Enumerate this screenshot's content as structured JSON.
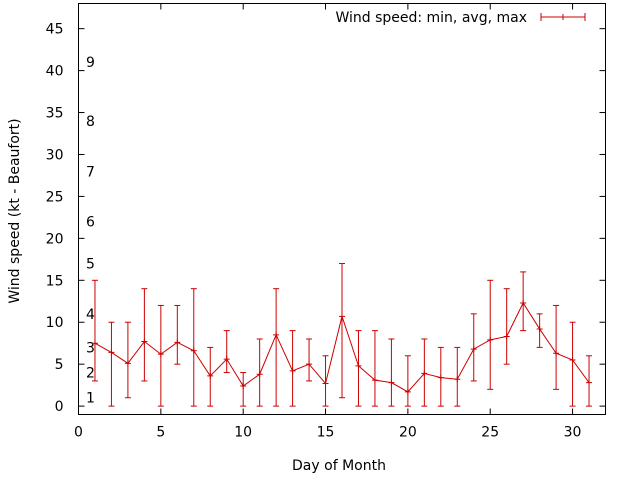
{
  "chart_data": {
    "type": "line",
    "title": "",
    "xlabel": "Day of Month",
    "ylabel": "Wind speed (kt - Beaufort)",
    "xlim": [
      0,
      32
    ],
    "ylim": [
      -1,
      48
    ],
    "xticks": [
      0,
      5,
      10,
      15,
      20,
      25,
      30
    ],
    "yticks": [
      0,
      5,
      10,
      15,
      20,
      25,
      30,
      35,
      40,
      45
    ],
    "grid": false,
    "legend": {
      "position": "top-right",
      "entries": [
        "Wind speed: min, avg, max"
      ]
    },
    "series_color": "#cc0000",
    "beaufort_labels": [
      {
        "label": "1",
        "y": 1
      },
      {
        "label": "2",
        "y": 4
      },
      {
        "label": "3",
        "y": 7
      },
      {
        "label": "4",
        "y": 11
      },
      {
        "label": "5",
        "y": 17
      },
      {
        "label": "6",
        "y": 22
      },
      {
        "label": "7",
        "y": 28
      },
      {
        "label": "8",
        "y": 34
      },
      {
        "label": "9",
        "y": 41
      }
    ],
    "series": [
      {
        "name": "Wind speed: min, avg, max",
        "x": [
          1,
          2,
          3,
          4,
          5,
          6,
          7,
          8,
          9,
          10,
          11,
          12,
          13,
          14,
          15,
          16,
          17,
          18,
          19,
          20,
          21,
          22,
          23,
          24,
          25,
          26,
          27,
          28,
          29,
          30,
          31
        ],
        "avg": [
          7.5,
          6.4,
          5.1,
          7.7,
          6.2,
          7.6,
          6.6,
          3.6,
          5.6,
          2.4,
          3.8,
          8.5,
          4.2,
          5.0,
          2.7,
          10.7,
          4.8,
          3.1,
          2.8,
          1.7,
          3.9,
          3.4,
          3.2,
          6.8,
          7.9,
          8.3,
          12.3,
          9.2,
          6.3,
          5.5,
          2.8
        ],
        "min": [
          3,
          0,
          1,
          3,
          0,
          5,
          0,
          0,
          4,
          0,
          0,
          0,
          0,
          3,
          0,
          1,
          0,
          0,
          0,
          0,
          0,
          0,
          0,
          3,
          2,
          5,
          9,
          7,
          2,
          0,
          0
        ],
        "max": [
          15,
          10,
          10,
          14,
          12,
          12,
          14,
          7,
          9,
          4,
          8,
          14,
          9,
          8,
          6,
          17,
          9,
          9,
          8,
          6,
          8,
          7,
          7,
          11,
          15,
          14,
          16,
          11,
          12,
          10,
          6
        ]
      }
    ]
  }
}
